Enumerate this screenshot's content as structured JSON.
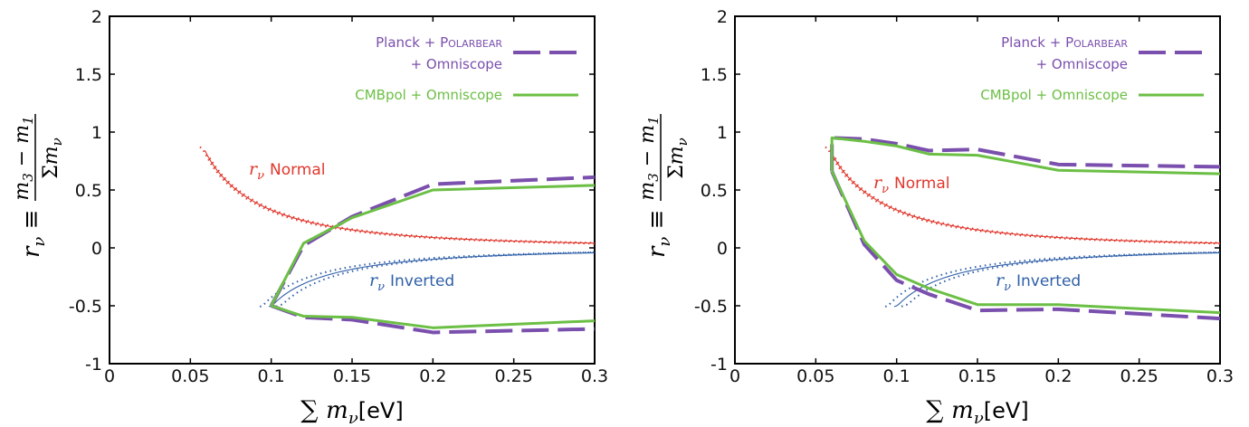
{
  "chart_data": [
    {
      "type": "line",
      "title": "",
      "xlabel": "∑ m_ν [eV]",
      "ylabel": "r_ν ≡ (m_3 − m_1) / Σm_ν",
      "xlim": [
        0,
        0.3
      ],
      "ylim": [
        -1,
        2
      ],
      "xticks": [
        "0",
        "0.05",
        "0.1",
        "0.15",
        "0.2",
        "0.25",
        "0.3"
      ],
      "yticks": [
        "-1",
        "-0.5",
        "0",
        "0.5",
        "1",
        "1.5",
        "2"
      ],
      "grid": false,
      "legend_position": "top-right",
      "legend": {
        "entry1_line1": "Planck + ",
        "entry1_sc_big": "P",
        "entry1_sc_small": "OLARBEAR",
        "entry1_line2": "+ Omniscope",
        "entry2": "CMBpol + Omniscope"
      },
      "annotations": {
        "normal": "Normal",
        "inverted": "Inverted",
        "r_symbol": "r",
        "nu_symbol": "ν"
      },
      "series": [
        {
          "name": "Planck + Polarbear + Omniscope",
          "style": "dashed",
          "color": "#7a4fad",
          "upper": [
            [
              0.1,
              -0.5
            ],
            [
              0.12,
              0.02
            ],
            [
              0.15,
              0.27
            ],
            [
              0.2,
              0.55
            ],
            [
              0.3,
              0.61
            ]
          ],
          "lower": [
            [
              0.1,
              -0.5
            ],
            [
              0.12,
              -0.6
            ],
            [
              0.15,
              -0.62
            ],
            [
              0.2,
              -0.73
            ],
            [
              0.3,
              -0.7
            ]
          ]
        },
        {
          "name": "CMBpol + Omniscope",
          "style": "solid",
          "color": "#6cbf45",
          "upper": [
            [
              0.1,
              -0.5
            ],
            [
              0.12,
              0.04
            ],
            [
              0.15,
              0.26
            ],
            [
              0.2,
              0.5
            ],
            [
              0.3,
              0.54
            ]
          ],
          "lower": [
            [
              0.1,
              -0.5
            ],
            [
              0.12,
              -0.59
            ],
            [
              0.15,
              -0.6
            ],
            [
              0.2,
              -0.69
            ],
            [
              0.3,
              -0.63
            ]
          ]
        }
      ],
      "theory_curves": {
        "normal_color": "#e0372c",
        "inverted_color": "#2f5fa8"
      }
    },
    {
      "type": "line",
      "title": "",
      "xlabel": "∑ m_ν [eV]",
      "ylabel": "r_ν ≡ (m_3 − m_1) / Σm_ν",
      "xlim": [
        0,
        0.3
      ],
      "ylim": [
        -1,
        2
      ],
      "xticks": [
        "0",
        "0.05",
        "0.1",
        "0.15",
        "0.2",
        "0.25",
        "0.3"
      ],
      "yticks": [
        "-1",
        "-0.5",
        "0",
        "0.5",
        "1",
        "1.5",
        "2"
      ],
      "grid": false,
      "legend_position": "top-right",
      "legend": {
        "entry1_line1": "Planck + ",
        "entry1_sc_big": "P",
        "entry1_sc_small": "OLARBEAR",
        "entry1_line2": "+ Omniscope",
        "entry2": "CMBpol + Omniscope"
      },
      "annotations": {
        "normal": "Normal",
        "inverted": "Inverted",
        "r_symbol": "r",
        "nu_symbol": "ν"
      },
      "series": [
        {
          "name": "Planck + Polarbear + Omniscope",
          "style": "dashed",
          "color": "#7a4fad",
          "upper": [
            [
              0.06,
              0.66
            ],
            [
              0.06,
              0.95
            ],
            [
              0.08,
              0.94
            ],
            [
              0.1,
              0.9
            ],
            [
              0.12,
              0.84
            ],
            [
              0.15,
              0.85
            ],
            [
              0.2,
              0.72
            ],
            [
              0.3,
              0.7
            ]
          ],
          "lower": [
            [
              0.06,
              0.66
            ],
            [
              0.08,
              0.03
            ],
            [
              0.1,
              -0.28
            ],
            [
              0.12,
              -0.4
            ],
            [
              0.15,
              -0.54
            ],
            [
              0.2,
              -0.53
            ],
            [
              0.3,
              -0.61
            ]
          ]
        },
        {
          "name": "CMBpol + Omniscope",
          "style": "solid",
          "color": "#6cbf45",
          "upper": [
            [
              0.06,
              0.66
            ],
            [
              0.06,
              0.95
            ],
            [
              0.08,
              0.92
            ],
            [
              0.1,
              0.88
            ],
            [
              0.12,
              0.81
            ],
            [
              0.15,
              0.8
            ],
            [
              0.2,
              0.67
            ],
            [
              0.3,
              0.64
            ]
          ],
          "lower": [
            [
              0.06,
              0.66
            ],
            [
              0.08,
              0.06
            ],
            [
              0.1,
              -0.23
            ],
            [
              0.12,
              -0.35
            ],
            [
              0.15,
              -0.49
            ],
            [
              0.2,
              -0.49
            ],
            [
              0.3,
              -0.56
            ]
          ]
        }
      ],
      "theory_curves": {
        "normal_color": "#e0372c",
        "inverted_color": "#2f5fa8"
      }
    }
  ]
}
